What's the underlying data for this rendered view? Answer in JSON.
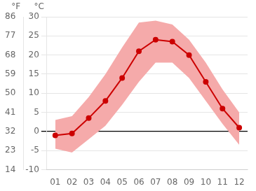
{
  "chart_data": {
    "type": "line",
    "categories": [
      "01",
      "02",
      "03",
      "04",
      "05",
      "06",
      "07",
      "08",
      "09",
      "10",
      "11",
      "12"
    ],
    "series": [
      {
        "type": "line",
        "color": "#cc0000",
        "marker": "circle",
        "values": [
          -1.0,
          -0.5,
          3.5,
          8.0,
          14.0,
          21.0,
          24.0,
          23.5,
          20.0,
          13.0,
          6.0,
          1.0
        ]
      },
      {
        "type": "band",
        "color": "#f5aaaa",
        "low": [
          -4.5,
          -5.5,
          -2.0,
          1.5,
          7.0,
          13.0,
          18.0,
          18.0,
          14.0,
          8.0,
          2.0,
          -3.5
        ],
        "high": [
          3.0,
          4.0,
          9.0,
          15.0,
          22.0,
          28.5,
          29.0,
          28.0,
          24.0,
          18.0,
          11.0,
          5.0
        ]
      }
    ],
    "ylabel": "°C",
    "y2label": "°F",
    "ylim": [
      -10,
      30
    ],
    "yticks": [
      -10,
      -5,
      0,
      5,
      10,
      15,
      20,
      25,
      30
    ],
    "y2lim": [
      14,
      86
    ],
    "y2ticks": [
      14,
      23,
      32,
      41,
      50,
      59,
      68,
      77,
      86
    ],
    "grid": true
  }
}
